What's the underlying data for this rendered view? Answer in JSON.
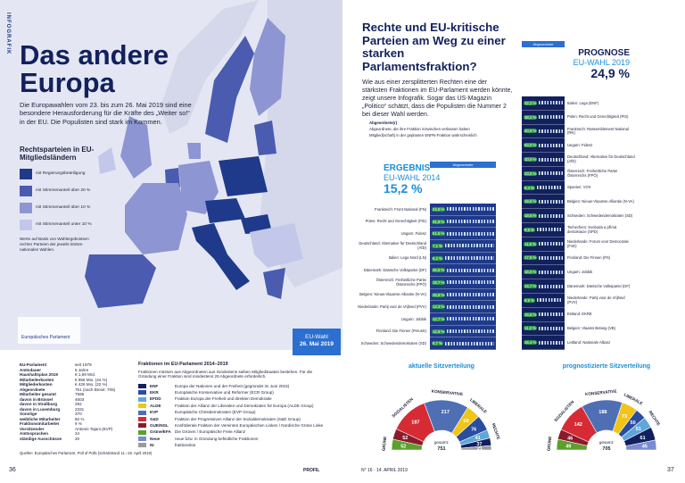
{
  "side_label": "INFOGRAFIK",
  "left": {
    "title": "Das andere Europa",
    "intro": "Die Europawahlen vom 23. bis zum 26. Mai 2019 sind eine besondere Herausforderung für die Kräfte des „Weiter so!“ in der EU. Die Populisten sind stark im Kommen.",
    "legend": {
      "title": "Rechtsparteien in EU-Mitgliedsländern",
      "items": [
        {
          "label": "mit Regierungsbeteiligung",
          "color": "#1f3a8a"
        },
        {
          "label": "mit Stimmenanteil über 20 %",
          "color": "#4a5bb0"
        },
        {
          "label": "mit Stimmenanteil über 10 %",
          "color": "#8d95d2"
        },
        {
          "label": "mit Stimmenanteil unter 10 %",
          "color": "#c3c8ea"
        }
      ],
      "note": "Werte auf Basis von Wahlergebnissen rechter Parteien der jeweils letzten nationalen Wahlen."
    },
    "parliament_label": "Europäisches Parlament",
    "badge": [
      "EU-Wahl",
      "26. Mai 2019"
    ],
    "facts": [
      [
        "EU-Parlament",
        "seit 1979"
      ],
      [
        "Amtsdauer",
        "5 Jahre"
      ],
      [
        "Haushaltsplan 2019",
        "€ 1,99 Mrd."
      ],
      [
        "Mitarbeiterkosten",
        "€ 858 Mio. (44 %)"
      ],
      [
        "Mitgliederkosten",
        "€ 426 Mio. (22 %)"
      ],
      [
        "Abgeordnete",
        "751 (nach Brexit: 705)"
      ],
      [
        "Mitarbeiter gesamt",
        "7596"
      ],
      [
        "davon in Brüssel",
        "4603"
      ],
      [
        "davon in Straßburg",
        "292"
      ],
      [
        "davon in Luxemburg",
        "2331"
      ],
      [
        "Sonstige",
        "370"
      ],
      [
        "weibliche Mitarbeiter",
        "60 %"
      ],
      [
        "Fraktionsmitarbeiter",
        "9 %"
      ],
      [
        "Vorsitzender",
        "Antonio Tajani (EVP)"
      ],
      [
        "Amtssprachen",
        "24"
      ],
      [
        "ständige Ausschüsse",
        "20"
      ]
    ],
    "factions": {
      "title": "Fraktionen im EU-Parlament 2014–2019",
      "intro": "Fraktionen müssen aus Abgeordneten aus mindestens sieben Mitgliedstaaten bestehen. Für die Gründung einer Fraktion sind mindestens 25 Abgeordnete erforderlich.",
      "items": [
        {
          "abbr": "ENF",
          "name": "Europa der Nationen und der Freiheit (gegründet im Juni 2015)",
          "color": "#12205e"
        },
        {
          "abbr": "EKR",
          "name": "Europäische Konservative und Reformer (ECR Group)",
          "color": "#2b4da0"
        },
        {
          "abbr": "EFDD",
          "name": "Fraktion Europa der Freiheit und direkten Demokratie",
          "color": "#5fa6d9"
        },
        {
          "abbr": "ALDE",
          "name": "Fraktion der Allianz der Liberalen und Demokraten für Europa (ALDE Group)",
          "color": "#f0c419"
        },
        {
          "abbr": "EVP",
          "name": "Europäische Christdemokraten (EVP Group)",
          "color": "#4f6fb5"
        },
        {
          "abbr": "S&D",
          "name": "Fraktion der Progressiven Allianz der Sozialdemokraten (S&D Group)",
          "color": "#d62b35"
        },
        {
          "abbr": "GUE/NGL",
          "name": "Konföderale Fraktion der Vereinten Europäischen Linken / Nordische Grüne Linke",
          "color": "#8b1a2b"
        },
        {
          "abbr": "Grüne/EFA",
          "name": "Die Grünen / Europäische Freie Allianz",
          "color": "#5aa02c"
        },
        {
          "abbr": "Neue",
          "name": "neue bzw. in Gründung befindliche Fraktionen",
          "color": "#7b8bd0"
        },
        {
          "abbr": "NI",
          "name": "fraktionslos",
          "color": "#9a9a9a"
        }
      ]
    },
    "source": "Quellen: Europäisches Parlament, Poll of Polls (Schätzstand 11.–18. April 2019)"
  },
  "right": {
    "title": "Rechte und EU-kritische Parteien am Weg zu einer starken Parlamentsfraktion?",
    "intro": "Wie aus einer zersplitterten Rechten eine der stärksten Fraktionen im EU-Parlament werden könnte, zeigt unsere Infografik. Sogar das US-Magazin „Politico“ schätzt, dass die Populisten die Nummer 2 bei dieser Wahl werden.",
    "key": [
      "Abgeordnete(r)",
      "Abgeordnete, die ihre Fraktion inzwischen verlassen haben",
      "Mitglied(schaft) in der geplanten ENPN-Fraktion wahrscheinlich"
    ],
    "column_header": "Abgeordnete",
    "result_2014": {
      "label": "ERGEBNIS",
      "sub": "EU-WAHL 2014",
      "share": "15,2 %",
      "parties": [
        [
          "Frankreich: Front National (FN)",
          "24,9 %"
        ],
        [
          "Polen: Recht und Gerechtigkeit (PiS)",
          "31,8 %"
        ],
        [
          "Ungarn: Fidesz",
          "51,5 %"
        ],
        [
          "Deutschland: Alternative für Deutschland (AfD)",
          "7,1 %"
        ],
        [
          "Italien: Lega Nord (LN)",
          "6,2 %"
        ],
        [
          "Dänemark: Dänische Volkspartei (DF)",
          "26,6 %"
        ],
        [
          "Österreich: Freiheitliche Partei Österreichs (FPÖ)",
          "19,7 %"
        ],
        [
          "Belgien: Nieuw-Vlaamse Alliantie (N-VA)",
          "26,8 %"
        ],
        [
          "Niederlande: Partij voor de Vrijheid (PVV)",
          "13,3 %"
        ],
        [
          "Ungarn: Jobbik",
          "14,7 %"
        ],
        [
          "Finnland: Die Finnen (PerusS)",
          "12,9 %"
        ],
        [
          "Schweden: Schwedendemokraten (SD)",
          "9,7 %"
        ]
      ]
    },
    "forecast_2019": {
      "label": "PROGNOSE",
      "sub": "EU-WAHL 2019",
      "share": "24,9 %",
      "parties": [
        [
          "Italien: Lega (ENF)",
          "32,2 %"
        ],
        [
          "Polen: Recht und Gerechtigkeit (PiS)",
          "38,2 %"
        ],
        [
          "Frankreich: Rassemblement National (RN)",
          "20,9 %"
        ],
        [
          "Ungarn: Fidesz",
          "53,0 %"
        ],
        [
          "Deutschland: Alternative für Deutschland (AfD)",
          "10,0 %"
        ],
        [
          "Österreich: Freiheitliche Partei Österreichs (FPÖ)",
          "23,0 %"
        ],
        [
          "Spanien: VOX",
          "8,4 %"
        ],
        [
          "Belgien: Nieuw-Vlaamse Alliantie (N-VA)",
          "19,6 %"
        ],
        [
          "Schweden: Schwedendemokraten (SD)",
          "18,6 %"
        ],
        [
          "Tschechien: Svoboda a přímá demokracie (SPD)",
          "9,6 %"
        ],
        [
          "Niederlande: Forum voor Democratie (FvD)",
          "11,6 %"
        ],
        [
          "Finnland: Die Finnen (PS)",
          "17,6 %"
        ],
        [
          "Ungarn: Jobbik",
          "16,0 %"
        ],
        [
          "Dänemark: Dänische Volkspartei (DF)",
          "14,7 %"
        ],
        [
          "Niederlande: Partij voor de Vrijheid (PVV)",
          "9,5 %"
        ],
        [
          "Estland: EKRE",
          "16,6 %"
        ],
        [
          "Belgien: Vlaams Belang (VB)",
          "11,2 %"
        ],
        [
          "Lettland: Nationale Allianz",
          "16,4 %"
        ]
      ]
    },
    "current_seats": {
      "title": "aktuelle Sitzverteilung",
      "total_label": "gesamt:",
      "total": 751,
      "groups": [
        {
          "seats": 52,
          "color": "#5aa02c",
          "label": "GRÜNE"
        },
        {
          "seats": 52,
          "color": "#8b1a2b"
        },
        {
          "seats": 187,
          "color": "#d62b35",
          "label": "SOZIALISTEN"
        },
        {
          "seats": 217,
          "color": "#4f6fb5",
          "label": "KONSERVATIVE"
        },
        {
          "seats": 68,
          "color": "#f0c419",
          "label": "LIBERALE"
        },
        {
          "seats": 76,
          "color": "#2b4da0"
        },
        {
          "seats": 41,
          "color": "#5fa6d9",
          "label": "RECHTE"
        },
        {
          "seats": 37,
          "color": "#12205e"
        },
        {
          "seats": 21,
          "color": "#9a9a9a"
        }
      ]
    },
    "forecast_seats": {
      "title": "prognostizierte Sitzverteilung",
      "total_label": "gesamt:",
      "total": 705,
      "groups": [
        {
          "seats": 49,
          "color": "#5aa02c",
          "label": "GRÜNE"
        },
        {
          "seats": 46,
          "color": "#8b1a2b"
        },
        {
          "seats": 142,
          "color": "#d62b35",
          "label": "SOZIALISTEN"
        },
        {
          "seats": 188,
          "color": "#4f6fb5",
          "label": "KONSERVATIVE"
        },
        {
          "seats": 73,
          "color": "#f0c419",
          "label": "LIBERALE"
        },
        {
          "seats": 50,
          "color": "#2b4da0"
        },
        {
          "seats": 51,
          "color": "#5fa6d9",
          "label": "RECHTE"
        },
        {
          "seats": 61,
          "color": "#12205e"
        },
        {
          "seats": 45,
          "color": "#7b8bd0"
        }
      ]
    }
  },
  "footer": {
    "page_left": "36",
    "magazine": "PROFIL",
    "issue": "N° 16 · 14. APRIL 2019",
    "page_right": "37"
  }
}
